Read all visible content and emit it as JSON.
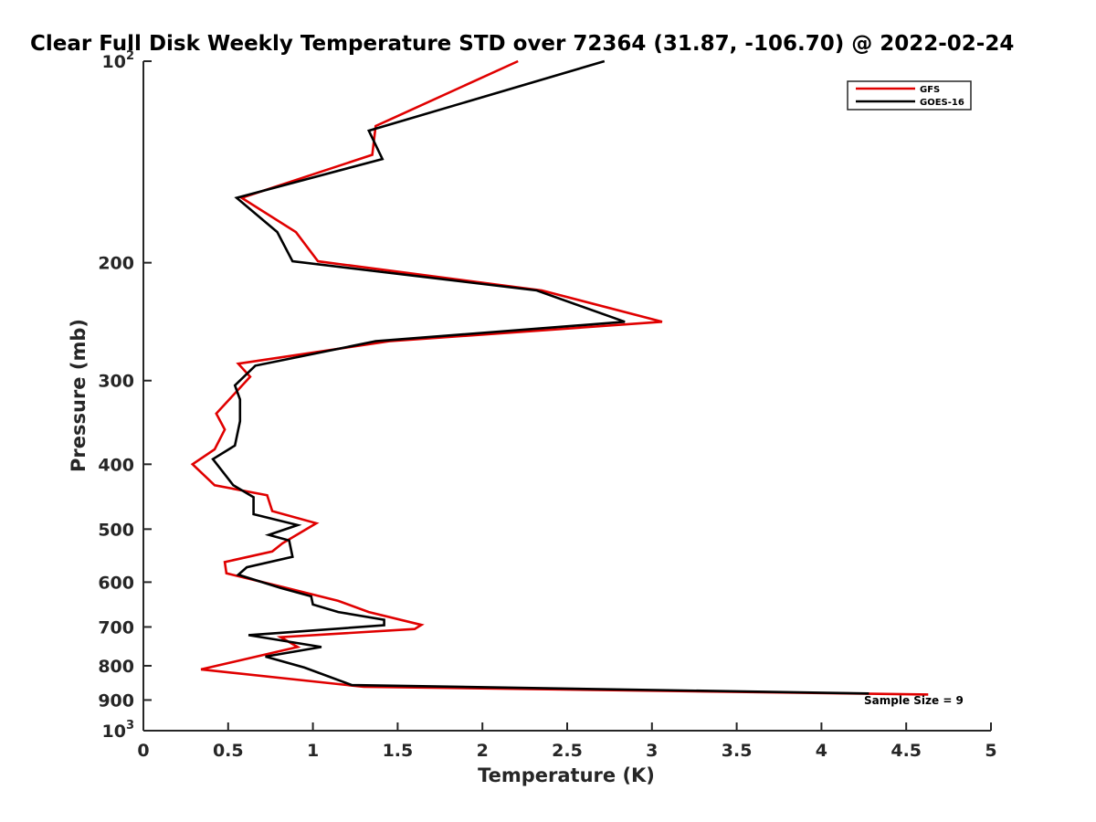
{
  "chart_data": {
    "type": "line",
    "title": "Clear Full Disk Weekly Temperature STD over 72364 (31.87, -106.70) @ 2022-02-24",
    "xlabel": "Temperature (K)",
    "ylabel": "Pressure (mb)",
    "xlim": [
      0,
      5
    ],
    "ylim": [
      100,
      1000
    ],
    "y_scale": "log",
    "y_reversed": true,
    "grid": false,
    "legend_position": "top-right",
    "x_ticks": [
      "0",
      "0.5",
      "1",
      "1.5",
      "2",
      "2.5",
      "3",
      "3.5",
      "4",
      "4.5",
      "5"
    ],
    "y_ticks": [
      {
        "value": 100,
        "base": "10",
        "exp": "2"
      },
      {
        "value": 200,
        "label": "200"
      },
      {
        "value": 300,
        "label": "300"
      },
      {
        "value": 400,
        "label": "400"
      },
      {
        "value": 500,
        "label": "500"
      },
      {
        "value": 600,
        "label": "600"
      },
      {
        "value": 700,
        "label": "700"
      },
      {
        "value": 800,
        "label": "800"
      },
      {
        "value": 900,
        "label": "900"
      },
      {
        "value": 1000,
        "base": "10",
        "exp": "3"
      }
    ],
    "annotation": "Sample Size = 9",
    "series": [
      {
        "name": "GFS",
        "color": "#e00000",
        "x": [
          2.21,
          1.37,
          1.35,
          0.58,
          0.9,
          1.03,
          2.35,
          3.06,
          1.45,
          0.56,
          0.63,
          0.43,
          0.48,
          0.42,
          0.29,
          0.42,
          0.73,
          0.76,
          1.02,
          0.82,
          0.76,
          0.48,
          0.49,
          0.82,
          1.15,
          1.33,
          1.64,
          1.6,
          0.81,
          0.91,
          0.34,
          1.3,
          4.63
        ],
        "y": [
          100,
          125,
          138,
          160,
          180,
          199,
          220,
          245,
          262,
          283,
          296,
          336,
          355,
          380,
          400,
          430,
          445,
          470,
          490,
          525,
          540,
          560,
          582,
          610,
          640,
          665,
          695,
          705,
          725,
          750,
          810,
          860,
          883
        ]
      },
      {
        "name": "GOES-16",
        "color": "#000000",
        "x": [
          2.72,
          1.33,
          1.41,
          0.55,
          0.79,
          0.88,
          2.32,
          2.84,
          1.37,
          0.66,
          0.54,
          0.57,
          0.57,
          0.54,
          0.41,
          0.53,
          0.65,
          0.65,
          0.91,
          0.74,
          0.86,
          0.88,
          0.61,
          0.56,
          0.81,
          0.99,
          1.0,
          1.15,
          1.42,
          1.42,
          0.62,
          1.05,
          0.72,
          0.95,
          1.23,
          4.28
        ],
        "y": [
          100,
          127,
          140,
          160,
          180,
          199,
          220,
          245,
          262,
          285,
          305,
          320,
          345,
          375,
          393,
          430,
          448,
          475,
          493,
          510,
          520,
          550,
          570,
          585,
          612,
          630,
          648,
          665,
          683,
          696,
          720,
          750,
          775,
          805,
          855,
          880
        ]
      }
    ]
  }
}
